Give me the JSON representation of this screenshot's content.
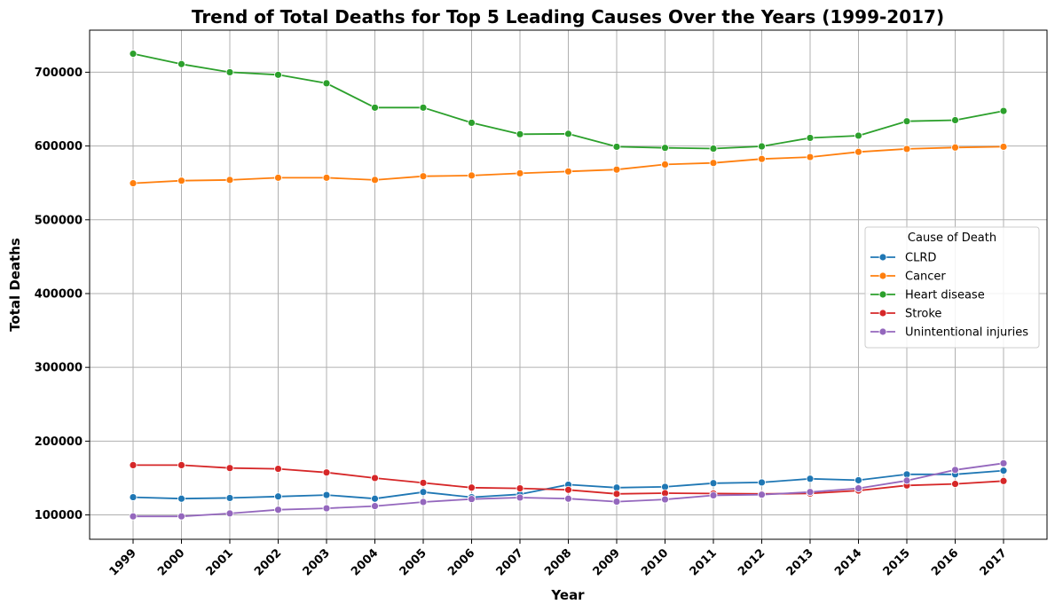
{
  "chart_data": {
    "type": "line",
    "title": "Trend of Total Deaths for Top 5 Leading Causes Over the Years (1999-2017)",
    "xlabel": "Year",
    "ylabel": "Total Deaths",
    "categories": [
      "1999",
      "2000",
      "2001",
      "2002",
      "2003",
      "2004",
      "2005",
      "2006",
      "2007",
      "2008",
      "2009",
      "2010",
      "2011",
      "2012",
      "2013",
      "2014",
      "2015",
      "2016",
      "2017"
    ],
    "ylim": [
      67000,
      757000
    ],
    "yticks": [
      100000,
      200000,
      300000,
      400000,
      500000,
      600000,
      700000
    ],
    "yticklabels": [
      "100000",
      "200000",
      "300000",
      "400000",
      "500000",
      "600000",
      "700000"
    ],
    "grid": true,
    "legend": {
      "title": "Cause of Death",
      "placement": "center-right"
    },
    "series": [
      {
        "name": "CLRD",
        "color": "#1f77b4",
        "values": [
          124000,
          122000,
          123000,
          125000,
          127000,
          122000,
          131000,
          124000,
          128000,
          141000,
          137000,
          138000,
          143000,
          144000,
          149000,
          147000,
          155000,
          155000,
          160000
        ]
      },
      {
        "name": "Cancer",
        "color": "#ff7f0e",
        "values": [
          549500,
          553000,
          554000,
          557000,
          557000,
          554000,
          559000,
          560000,
          563000,
          565500,
          568000,
          575000,
          577000,
          582500,
          585000,
          592000,
          596000,
          598000,
          599000
        ]
      },
      {
        "name": "Heart disease",
        "color": "#2ca02c",
        "values": [
          725000,
          711000,
          700000,
          696500,
          685000,
          652000,
          652000,
          631500,
          616000,
          616500,
          599000,
          597500,
          596500,
          599500,
          611000,
          614000,
          633500,
          635000,
          647500
        ]
      },
      {
        "name": "Stroke",
        "color": "#d62728",
        "values": [
          167500,
          167500,
          163500,
          162500,
          157500,
          150000,
          143500,
          137000,
          136000,
          134000,
          128500,
          129500,
          129000,
          128500,
          129000,
          133000,
          140000,
          142000,
          146000
        ]
      },
      {
        "name": "Unintentional injuries",
        "color": "#9467bd",
        "values": [
          98000,
          98000,
          102000,
          107000,
          109000,
          112000,
          117500,
          121500,
          123500,
          122000,
          118000,
          121000,
          126500,
          127500,
          131000,
          136000,
          146500,
          161000,
          170000
        ]
      }
    ]
  }
}
